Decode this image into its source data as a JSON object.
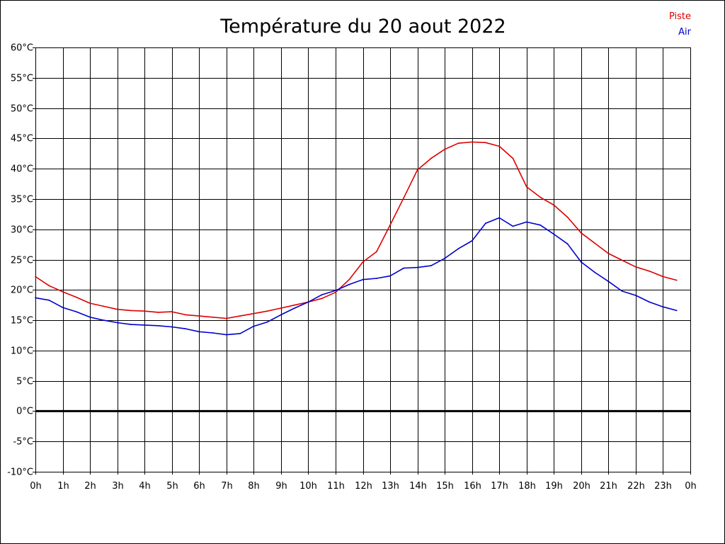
{
  "chart_data": {
    "type": "line",
    "title": "Température du 20 aout 2022",
    "xlabel": "",
    "ylabel": "",
    "ylim": [
      -10,
      60
    ],
    "y_tick_labels": [
      "-10°C",
      "-5°C",
      "0°C",
      "5°C",
      "10°C",
      "15°C",
      "20°C",
      "25°C",
      "30°C",
      "35°C",
      "40°C",
      "45°C",
      "50°C",
      "55°C",
      "60°C"
    ],
    "x_tick_labels": [
      "0h",
      "1h",
      "2h",
      "3h",
      "4h",
      "5h",
      "6h",
      "7h",
      "8h",
      "9h",
      "10h",
      "11h",
      "12h",
      "13h",
      "14h",
      "15h",
      "16h",
      "17h",
      "18h",
      "19h",
      "20h",
      "21h",
      "22h",
      "23h",
      "0h"
    ],
    "xlim": [
      0,
      24
    ],
    "grid": true,
    "zero_line": true,
    "legend_position": "top-right",
    "series": [
      {
        "name": "Piste",
        "color": "#dd0000",
        "x": [
          0,
          0.5,
          1,
          1.5,
          2,
          2.5,
          3,
          3.5,
          4,
          4.5,
          5,
          5.5,
          6,
          6.5,
          7,
          7.5,
          8,
          8.5,
          9,
          9.5,
          10,
          10.5,
          11,
          11.5,
          12,
          12.5,
          13,
          13.5,
          14,
          14.5,
          15,
          15.5,
          16,
          16.5,
          17,
          17.5,
          18,
          18.5,
          19,
          19.5,
          20,
          20.5,
          21,
          21.5,
          22,
          22.5,
          23,
          23.5
        ],
        "values": [
          22.2,
          20.7,
          19.7,
          18.8,
          17.8,
          17.3,
          16.8,
          16.6,
          16.5,
          16.3,
          16.4,
          15.9,
          15.7,
          15.5,
          15.3,
          15.7,
          16.1,
          16.5,
          17.0,
          17.5,
          18.0,
          18.6,
          19.6,
          21.7,
          24.6,
          26.3,
          30.7,
          35.2,
          39.8,
          41.7,
          43.2,
          44.2,
          44.4,
          44.3,
          43.7,
          41.7,
          37.0,
          35.3,
          34.0,
          32.0,
          29.4,
          27.7,
          26.0,
          24.9,
          23.8,
          23.1,
          22.2,
          21.6
        ]
      },
      {
        "name": "Air",
        "color": "#0000cc",
        "x": [
          0,
          0.5,
          1,
          1.5,
          2,
          2.5,
          3,
          3.5,
          4,
          4.5,
          5,
          5.5,
          6,
          6.5,
          7,
          7.5,
          8,
          8.5,
          9,
          9.5,
          10,
          10.5,
          11,
          11.5,
          12,
          12.5,
          13,
          13.5,
          14,
          14.5,
          15,
          15.5,
          16,
          16.5,
          17,
          17.5,
          18,
          18.5,
          19,
          19.5,
          20,
          20.5,
          21,
          21.5,
          22,
          22.5,
          23,
          23.5
        ],
        "values": [
          18.7,
          18.3,
          17.1,
          16.4,
          15.5,
          15.0,
          14.6,
          14.3,
          14.2,
          14.1,
          13.9,
          13.6,
          13.1,
          12.9,
          12.6,
          12.8,
          14.0,
          14.7,
          15.9,
          17.0,
          18.0,
          19.2,
          19.9,
          20.9,
          21.7,
          21.9,
          22.3,
          23.6,
          23.7,
          24.0,
          25.2,
          26.8,
          28.1,
          31.0,
          31.9,
          30.5,
          31.2,
          30.7,
          29.2,
          27.6,
          24.6,
          22.9,
          21.4,
          19.8,
          19.1,
          18.0,
          17.2,
          16.6
        ]
      }
    ]
  }
}
